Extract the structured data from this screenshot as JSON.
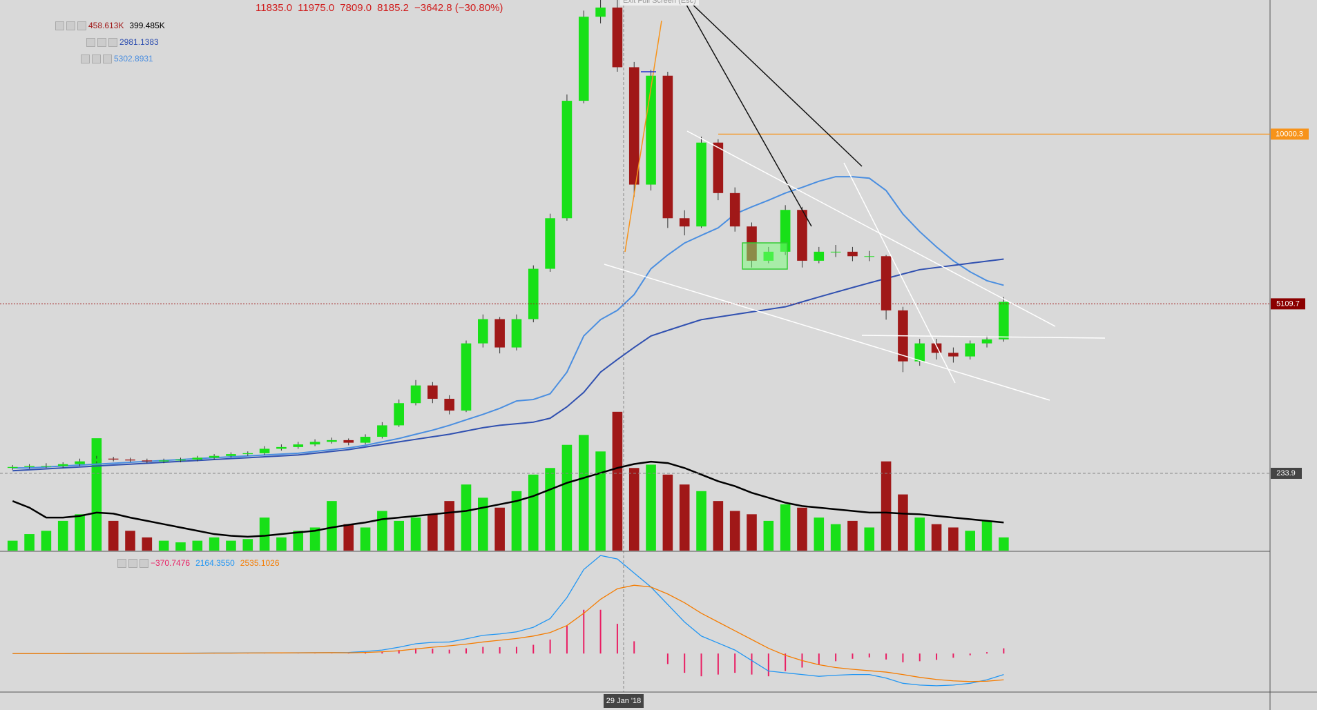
{
  "chart_data": {
    "type": "candlestick",
    "log_scale": true,
    "ylim": [
      1925,
      17000
    ],
    "up_color": "#18e018",
    "down_color": "#a01818",
    "open": [
      2670,
      2680,
      2690,
      2690,
      2710,
      2740,
      2770,
      2760,
      2750,
      2740,
      2750,
      2760,
      2780,
      2800,
      2820,
      2830,
      2880,
      2900,
      2930,
      2960,
      2980,
      2950,
      3020,
      3160,
      3450,
      3700,
      3510,
      3350,
      4370,
      4810,
      4300,
      4810,
      5870,
      7170,
      11410,
      15910,
      16500,
      13030,
      8190,
      12600,
      7170,
      6940,
      9670,
      7920,
      6940,
      6060,
      6280,
      7410,
      6060,
      6280,
      6280,
      6170,
      6170,
      4980,
      4070,
      4370,
      4210,
      4150,
      4370,
      4440
    ],
    "high": [
      2700,
      2710,
      2720,
      2730,
      2770,
      2800,
      2790,
      2780,
      2770,
      2770,
      2780,
      2800,
      2820,
      2840,
      2850,
      2910,
      2930,
      2960,
      2990,
      3010,
      3000,
      3050,
      3200,
      3500,
      3780,
      3750,
      3560,
      4420,
      4900,
      4850,
      4900,
      5950,
      7300,
      11700,
      16300,
      17000,
      17000,
      13300,
      12900,
      12800,
      7400,
      9900,
      9800,
      8100,
      7050,
      6400,
      7550,
      7500,
      6400,
      6450,
      6400,
      6300,
      6200,
      5050,
      4450,
      4450,
      4300,
      4420,
      4500,
      5250
    ],
    "low": [
      2650,
      2660,
      2670,
      2670,
      2690,
      2720,
      2740,
      2730,
      2720,
      2720,
      2730,
      2740,
      2760,
      2780,
      2800,
      2810,
      2860,
      2880,
      2910,
      2940,
      2920,
      2930,
      3000,
      3140,
      3420,
      3450,
      3300,
      3330,
      4300,
      4200,
      4250,
      4750,
      5800,
      7100,
      11300,
      15500,
      12800,
      7800,
      8000,
      6900,
      6700,
      6900,
      7700,
      6800,
      5900,
      6000,
      6200,
      5900,
      6000,
      6150,
      6050,
      6050,
      4800,
      3900,
      4000,
      4100,
      4050,
      4100,
      4300,
      4400
    ],
    "close": [
      2680,
      2690,
      2690,
      2710,
      2740,
      2770,
      2760,
      2750,
      2740,
      2750,
      2760,
      2780,
      2800,
      2820,
      2830,
      2880,
      2900,
      2930,
      2960,
      2980,
      2950,
      3020,
      3160,
      3450,
      3700,
      3510,
      3350,
      4370,
      4810,
      4300,
      4810,
      5870,
      7170,
      11410,
      15910,
      16500,
      13030,
      8190,
      12600,
      7170,
      6940,
      9670,
      7920,
      6940,
      6060,
      6280,
      7410,
      6060,
      6280,
      6280,
      6170,
      6170,
      4980,
      4070,
      4370,
      4210,
      4150,
      4370,
      4440,
      5150
    ],
    "lines": [
      {
        "color": "#4a8ee0",
        "values": [
          2670,
          2670,
          2680,
          2690,
          2700,
          2710,
          2720,
          2730,
          2740,
          2750,
          2760,
          2770,
          2780,
          2790,
          2800,
          2810,
          2820,
          2830,
          2850,
          2870,
          2890,
          2920,
          2960,
          3000,
          3050,
          3100,
          3160,
          3230,
          3300,
          3380,
          3480,
          3500,
          3580,
          3900,
          4500,
          4800,
          4980,
          5300,
          5870,
          6200,
          6500,
          6700,
          6900,
          7290,
          7500,
          7700,
          7920,
          8100,
          8300,
          8450,
          8450,
          8400,
          8000,
          7290,
          6800,
          6400,
          6060,
          5800,
          5600,
          5500
        ]
      },
      {
        "color": "#3050b0",
        "values": [
          2640,
          2650,
          2660,
          2670,
          2680,
          2690,
          2700,
          2710,
          2720,
          2730,
          2740,
          2750,
          2760,
          2770,
          2780,
          2790,
          2800,
          2810,
          2830,
          2850,
          2870,
          2900,
          2930,
          2960,
          2990,
          3020,
          3050,
          3090,
          3130,
          3160,
          3180,
          3200,
          3250,
          3400,
          3600,
          3900,
          4100,
          4300,
          4500,
          4600,
          4700,
          4800,
          4850,
          4900,
          4950,
          5000,
          5050,
          5150,
          5250,
          5350,
          5450,
          5550,
          5650,
          5750,
          5850,
          5900,
          5950,
          6000,
          6050,
          6100
        ]
      }
    ],
    "level_line": {
      "value": 10000.3,
      "color": "#f7931a"
    },
    "price_line": 5109.7,
    "y2lim": [
      0,
      1666
    ],
    "volume": {
      "axis": "y2",
      "values": [
        30,
        50,
        60,
        90,
        110,
        340,
        90,
        60,
        40,
        30,
        25,
        30,
        40,
        30,
        35,
        100,
        40,
        60,
        70,
        150,
        80,
        70,
        120,
        90,
        100,
        110,
        150,
        200,
        160,
        130,
        180,
        230,
        250,
        320,
        350,
        300,
        420,
        250,
        260,
        230,
        200,
        180,
        150,
        120,
        110,
        90,
        140,
        130,
        100,
        80,
        90,
        70,
        270,
        170,
        100,
        80,
        70,
        60,
        90,
        40
      ],
      "ma_color": "#000000",
      "ma_values": [
        150,
        130,
        100,
        100,
        105,
        115,
        112,
        100,
        90,
        80,
        70,
        60,
        50,
        45,
        42,
        45,
        50,
        55,
        60,
        70,
        78,
        85,
        95,
        100,
        105,
        110,
        115,
        120,
        130,
        140,
        150,
        165,
        185,
        205,
        220,
        235,
        250,
        262,
        269,
        265,
        250,
        230,
        210,
        195,
        175,
        160,
        145,
        135,
        130,
        125,
        120,
        115,
        115,
        112,
        110,
        105,
        100,
        95,
        90,
        85
      ],
      "marker": 233.9
    },
    "macd": {
      "ylim": [
        -1100,
        2900
      ],
      "macd_color": "#2196f3",
      "signal_color": "#f57c00",
      "hist_color": "#e91e63",
      "macd": [
        0,
        0,
        0,
        0,
        5,
        10,
        10,
        10,
        10,
        10,
        10,
        12,
        15,
        15,
        18,
        20,
        20,
        22,
        25,
        28,
        30,
        60,
        100,
        180,
        280,
        320,
        330,
        420,
        520,
        560,
        620,
        750,
        1000,
        1600,
        2400,
        2800,
        2700,
        2300,
        1900,
        1400,
        900,
        500,
        300,
        100,
        -200,
        -500,
        -550,
        -600,
        -650,
        -620,
        -600,
        -600,
        -700,
        -850,
        -900,
        -920,
        -900,
        -850,
        -750,
        -600
      ],
      "signal": [
        0,
        0,
        0,
        0,
        3,
        6,
        8,
        9,
        10,
        10,
        10,
        11,
        13,
        14,
        16,
        18,
        19,
        20,
        22,
        24,
        20,
        30,
        50,
        80,
        130,
        180,
        220,
        270,
        330,
        380,
        430,
        500,
        600,
        800,
        1150,
        1550,
        1850,
        1950,
        1900,
        1700,
        1450,
        1150,
        900,
        650,
        400,
        150,
        -50,
        -200,
        -320,
        -400,
        -450,
        -490,
        -530,
        -600,
        -680,
        -740,
        -780,
        -800,
        -790,
        -750
      ],
      "histogram": [
        0,
        0,
        0,
        0,
        2,
        4,
        2,
        1,
        0,
        0,
        0,
        1,
        2,
        1,
        2,
        2,
        1,
        2,
        3,
        4,
        10,
        30,
        50,
        100,
        150,
        140,
        110,
        150,
        190,
        180,
        190,
        250,
        400,
        800,
        1250,
        1250,
        850,
        350,
        0,
        -300,
        -550,
        -650,
        -600,
        -550,
        -600,
        -650,
        -500,
        -400,
        -330,
        -220,
        -150,
        -110,
        -170,
        -250,
        -220,
        -180,
        -120,
        -50,
        40,
        150
      ]
    },
    "crosshair_label": "29 Jan '18"
  },
  "legend": {
    "ohlc": [
      "11835.0",
      "11975.0",
      "7809.0",
      "8185.2",
      "−3642.8 (−30.80%)"
    ],
    "volume": [
      "458.613K",
      "399.485K"
    ],
    "ma1": "2981.1383",
    "ma2": "5302.8931",
    "macd": [
      "−370.7476",
      "2164.3550",
      "2535.1026"
    ],
    "tooltip": "Exit Full Screen (Esc)"
  }
}
